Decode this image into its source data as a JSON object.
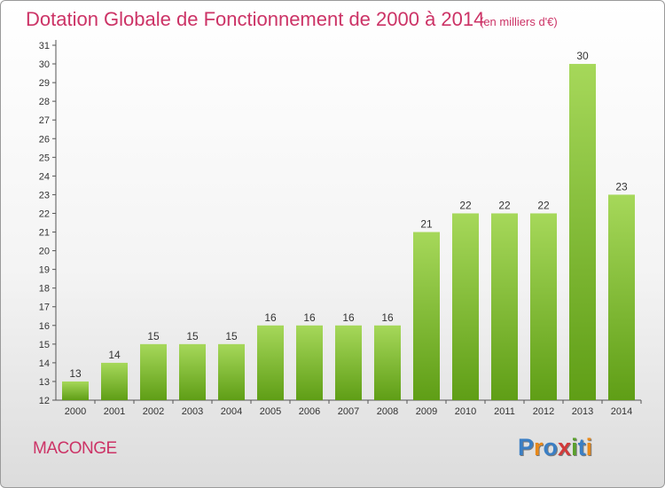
{
  "title": "Dotation Globale de Fonctionnement de 2000 à 2014",
  "unit_note": "(en milliers d'€)",
  "commune": "MACONGE",
  "logo": {
    "text": "Proxiti",
    "colors": [
      "#3b7fc4",
      "#e8891a",
      "#3b7fc4",
      "#d23a3a",
      "#5aa02c",
      "#3b7fc4",
      "#e8891a"
    ]
  },
  "colors": {
    "title": "#cc3366",
    "bar_light": "#a6d85a",
    "bar_dark": "#5f9e16",
    "axis": "#555555"
  },
  "chart_data": {
    "type": "bar",
    "categories": [
      "2000",
      "2001",
      "2002",
      "2003",
      "2004",
      "2005",
      "2006",
      "2007",
      "2008",
      "2009",
      "2010",
      "2011",
      "2012",
      "2013",
      "2014"
    ],
    "values": [
      13,
      14,
      15,
      15,
      15,
      16,
      16,
      16,
      16,
      21,
      22,
      22,
      22,
      30,
      23
    ],
    "ylim": [
      12,
      31
    ],
    "yticks": [
      12,
      13,
      14,
      15,
      16,
      17,
      18,
      19,
      20,
      21,
      22,
      23,
      24,
      25,
      26,
      27,
      28,
      29,
      30,
      31
    ],
    "grid": false,
    "legend": "none"
  }
}
